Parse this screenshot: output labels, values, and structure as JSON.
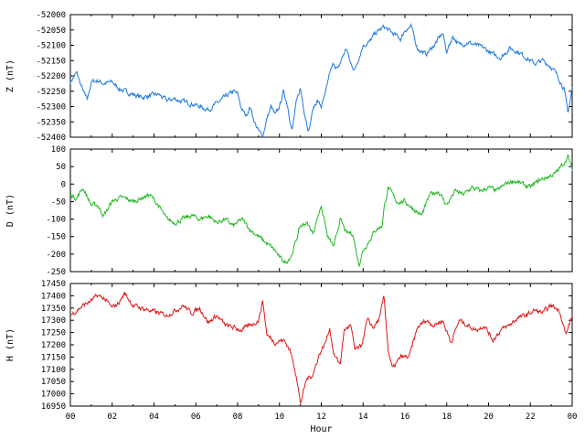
{
  "chart_data": [
    {
      "type": "line",
      "ylabel": "Z (nT)",
      "ylim": [
        -52400,
        -52000
      ],
      "yticks": [
        -52000,
        -52050,
        -52100,
        -52150,
        -52200,
        -52250,
        -52300,
        -52350,
        -52400
      ],
      "xlim": [
        0,
        24
      ],
      "color": "#1f78e0",
      "series": [
        {
          "x": [
            0,
            0.3,
            0.5,
            0.8,
            1.0,
            1.3,
            1.6,
            2.0,
            2.3,
            2.6,
            3.0,
            3.4,
            3.8,
            4.2,
            4.6,
            5.0,
            5.4,
            5.8,
            6.2,
            6.6,
            7.0,
            7.4,
            7.8,
            8.0,
            8.2,
            8.4,
            8.6,
            8.8,
            9.0,
            9.2,
            9.4,
            9.6,
            9.8,
            10.0,
            10.2,
            10.4,
            10.6,
            10.8,
            11.0,
            11.2,
            11.4,
            11.6,
            11.8,
            12.0,
            12.2,
            12.4,
            12.6,
            12.8,
            13.0,
            13.2,
            13.4,
            13.6,
            13.8,
            14.0,
            14.3,
            14.6,
            15.0,
            15.4,
            15.8,
            16.0,
            16.3,
            16.6,
            17.0,
            17.4,
            17.8,
            18.0,
            18.3,
            18.6,
            19.0,
            19.4,
            19.8,
            20.2,
            20.6,
            21.0,
            21.4,
            21.8,
            22.2,
            22.6,
            23.0,
            23.3,
            23.6,
            23.8,
            24.0
          ],
          "values": [
            -52220,
            -52190,
            -52230,
            -52280,
            -52220,
            -52215,
            -52225,
            -52220,
            -52240,
            -52250,
            -52260,
            -52270,
            -52265,
            -52260,
            -52280,
            -52275,
            -52285,
            -52290,
            -52300,
            -52310,
            -52290,
            -52270,
            -52250,
            -52260,
            -52310,
            -52330,
            -52300,
            -52350,
            -52380,
            -52395,
            -52340,
            -52300,
            -52330,
            -52300,
            -52250,
            -52300,
            -52380,
            -52290,
            -52240,
            -52320,
            -52380,
            -52310,
            -52280,
            -52300,
            -52260,
            -52190,
            -52160,
            -52180,
            -52140,
            -52110,
            -52160,
            -52180,
            -52140,
            -52100,
            -52090,
            -52060,
            -52040,
            -52060,
            -52080,
            -52050,
            -52040,
            -52110,
            -52130,
            -52100,
            -52060,
            -52120,
            -52070,
            -52100,
            -52090,
            -52100,
            -52110,
            -52130,
            -52140,
            -52110,
            -52120,
            -52140,
            -52160,
            -52150,
            -52170,
            -52200,
            -52240,
            -52320,
            -52240
          ]
        }
      ]
    },
    {
      "type": "line",
      "ylabel": "D (nT)",
      "ylim": [
        -250,
        100
      ],
      "yticks": [
        100,
        50,
        0,
        -50,
        -100,
        -150,
        -200,
        -250
      ],
      "xlim": [
        0,
        24
      ],
      "color": "#22b822",
      "series": [
        {
          "x": [
            0,
            0.3,
            0.6,
            1.0,
            1.3,
            1.6,
            2.0,
            2.3,
            2.6,
            3.0,
            3.4,
            3.8,
            4.2,
            4.6,
            5.0,
            5.4,
            5.8,
            6.2,
            6.6,
            7.0,
            7.4,
            7.8,
            8.2,
            8.6,
            9.0,
            9.4,
            9.8,
            10.0,
            10.3,
            10.6,
            10.8,
            11.0,
            11.3,
            11.6,
            11.8,
            12.0,
            12.3,
            12.6,
            12.9,
            13.2,
            13.5,
            13.8,
            14.0,
            14.3,
            14.6,
            14.9,
            15.0,
            15.2,
            15.6,
            16.0,
            16.4,
            16.8,
            17.2,
            17.6,
            18.0,
            18.4,
            18.8,
            19.2,
            19.6,
            20.0,
            20.4,
            20.8,
            21.2,
            21.6,
            22.0,
            22.4,
            22.8,
            23.2,
            23.6,
            23.8,
            24.0
          ],
          "values": [
            -30,
            -40,
            -10,
            -60,
            -60,
            -90,
            -50,
            -40,
            -40,
            -50,
            -40,
            -30,
            -60,
            -100,
            -110,
            -100,
            -90,
            -100,
            -90,
            -110,
            -100,
            -120,
            -100,
            -130,
            -150,
            -170,
            -190,
            -210,
            -225,
            -200,
            -160,
            -120,
            -110,
            -140,
            -100,
            -60,
            -150,
            -180,
            -100,
            -140,
            -140,
            -230,
            -190,
            -160,
            -130,
            -120,
            -70,
            -10,
            -50,
            -50,
            -70,
            -90,
            -30,
            -20,
            -60,
            -20,
            -30,
            -10,
            -20,
            -10,
            -20,
            0,
            10,
            0,
            -10,
            10,
            20,
            30,
            60,
            80,
            40
          ]
        }
      ]
    },
    {
      "type": "line",
      "ylabel": "H (nT)",
      "ylim": [
        16950,
        17450
      ],
      "yticks": [
        17450,
        17400,
        17350,
        17300,
        17250,
        17200,
        17150,
        17100,
        17050,
        17000,
        16950
      ],
      "xlim": [
        0,
        24
      ],
      "color": "#e01818",
      "series": [
        {
          "x": [
            0,
            0.3,
            0.6,
            1.0,
            1.3,
            1.6,
            2.0,
            2.3,
            2.6,
            3.0,
            3.4,
            3.8,
            4.2,
            4.6,
            5.0,
            5.4,
            5.8,
            6.2,
            6.6,
            7.0,
            7.4,
            7.8,
            8.2,
            8.6,
            9.0,
            9.2,
            9.4,
            9.8,
            10.2,
            10.5,
            10.8,
            11.0,
            11.3,
            11.6,
            11.9,
            12.2,
            12.4,
            12.6,
            12.9,
            13.1,
            13.4,
            13.6,
            13.9,
            14.2,
            14.5,
            14.8,
            15.0,
            15.2,
            15.4,
            15.8,
            16.2,
            16.6,
            17.0,
            17.4,
            17.8,
            18.2,
            18.6,
            19.0,
            19.4,
            19.8,
            20.2,
            20.6,
            21.0,
            21.4,
            21.8,
            22.2,
            22.6,
            23.0,
            23.4,
            23.7,
            24.0
          ],
          "values": [
            17320,
            17340,
            17360,
            17380,
            17400,
            17390,
            17350,
            17370,
            17410,
            17360,
            17350,
            17340,
            17330,
            17320,
            17340,
            17360,
            17330,
            17350,
            17290,
            17320,
            17280,
            17270,
            17260,
            17280,
            17300,
            17380,
            17240,
            17210,
            17220,
            17180,
            17080,
            16960,
            17060,
            17080,
            17160,
            17210,
            17270,
            17160,
            17120,
            17260,
            17280,
            17180,
            17190,
            17300,
            17270,
            17310,
            17400,
            17180,
            17100,
            17150,
            17150,
            17270,
            17300,
            17280,
            17300,
            17210,
            17300,
            17280,
            17260,
            17280,
            17220,
            17260,
            17280,
            17310,
            17320,
            17340,
            17330,
            17360,
            17340,
            17240,
            17320
          ]
        }
      ]
    }
  ],
  "xaxis": {
    "ticks": [
      "00",
      "02",
      "04",
      "06",
      "08",
      "10",
      "12",
      "14",
      "16",
      "18",
      "20",
      "22",
      "00"
    ],
    "label": "Hour"
  }
}
